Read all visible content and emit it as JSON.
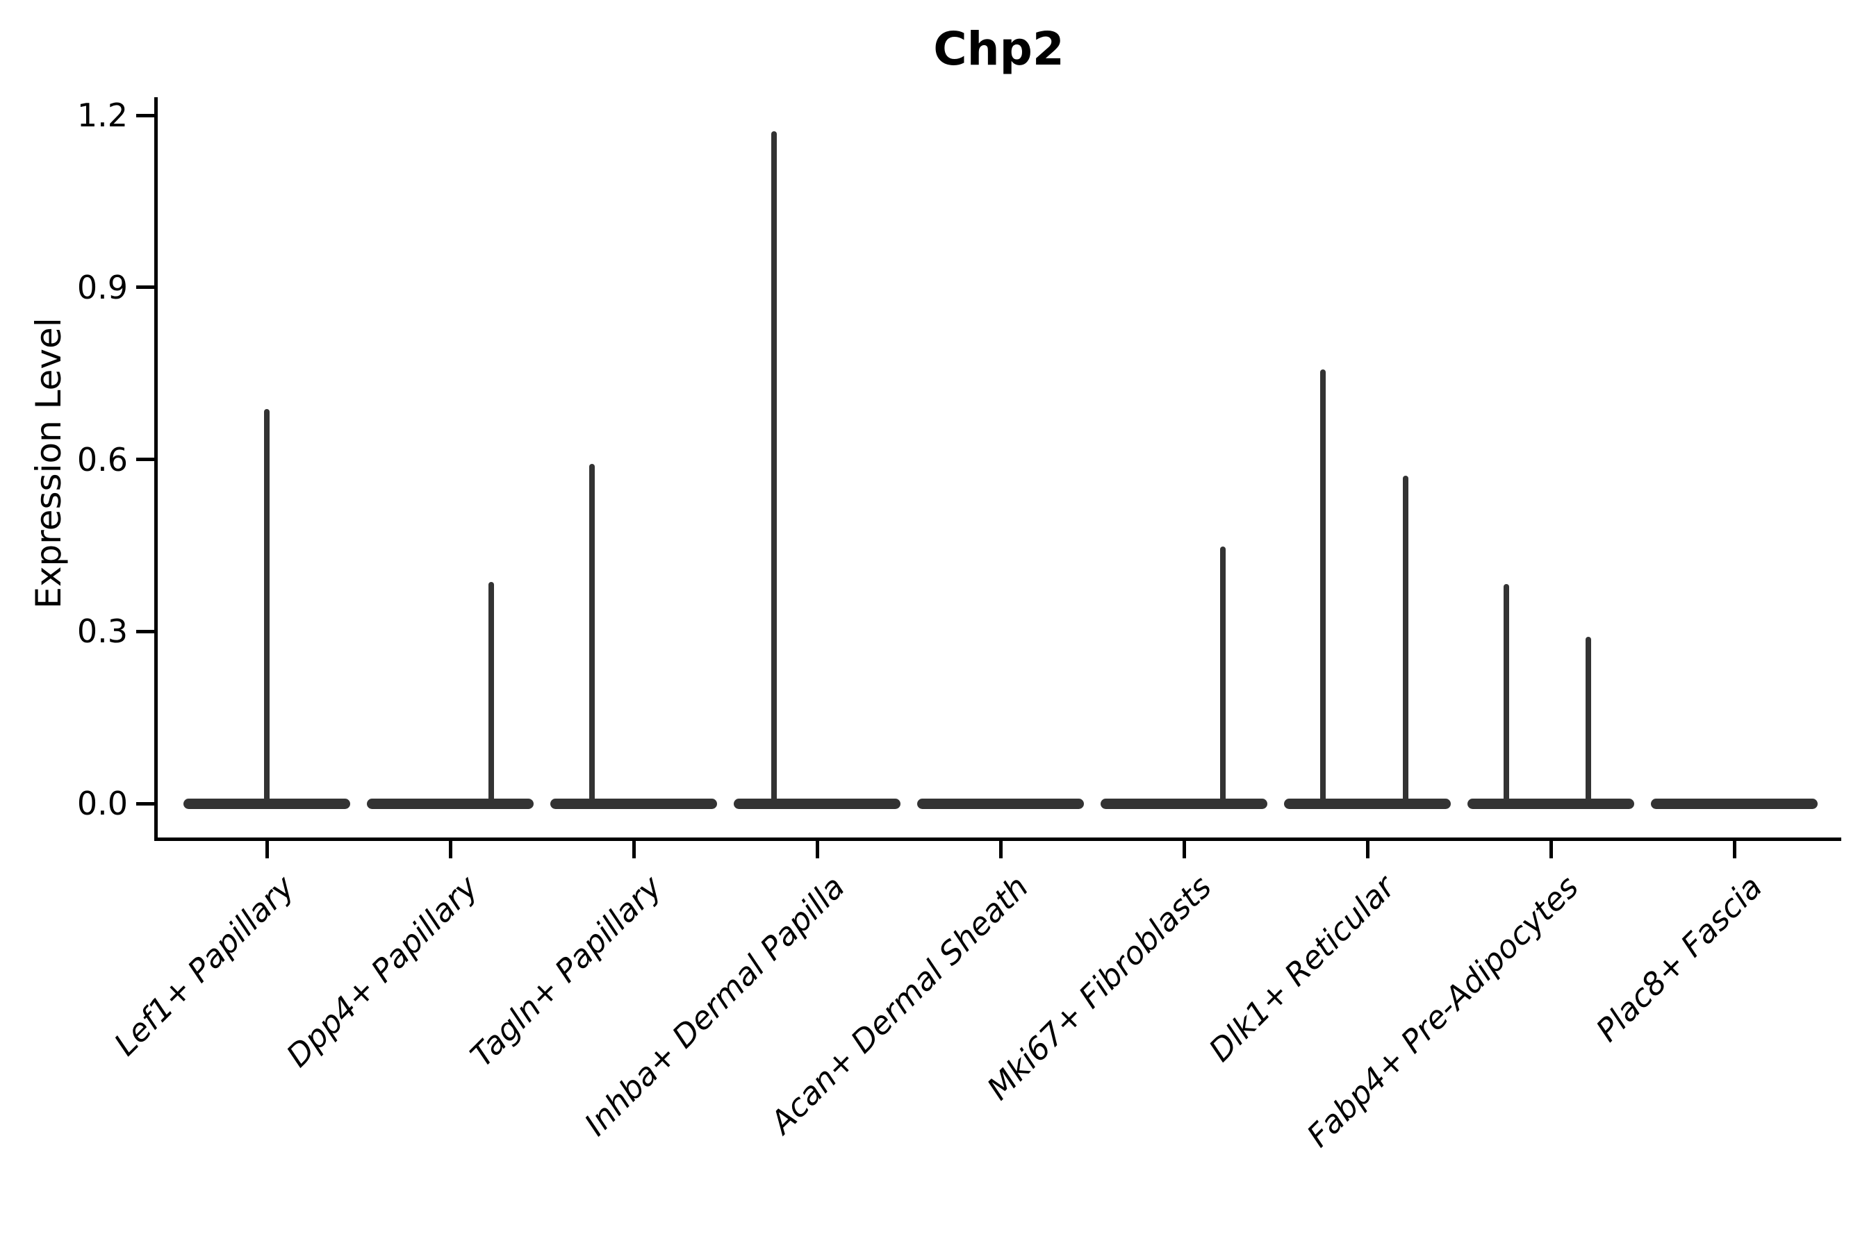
{
  "chart_data": {
    "type": "violin",
    "title": "Chp2",
    "xlabel": "",
    "ylabel": "Expression Level",
    "ytick_labels": [
      "0.0",
      "0.3",
      "0.6",
      "0.9",
      "1.2"
    ],
    "yticks": [
      0.0,
      0.3,
      0.6,
      0.9,
      1.2
    ],
    "ylim": [
      -0.06,
      1.23
    ],
    "grid": false,
    "legend": "none",
    "style_note": "zero-inflated expression violins: wide flat body at 0 with thin vertical density spikes",
    "violin_color": "#333333",
    "axis_color": "#000000",
    "categories": [
      "Lef1+ Papillary",
      "Dpp4+ Papillary",
      "Tagln+ Papillary",
      "Inhba+ Dermal Papilla",
      "Acan+ Dermal Sheath",
      "Mki67+ Fibroblasts",
      "Dlk1+ Reticular",
      "Fabp4+ Pre-Adipocytes",
      "Plac8+ Fascia"
    ],
    "violins": [
      {
        "category": "Lef1+ Papillary",
        "baseline_mass_at_zero": true,
        "spikes": [
          {
            "x_offset": 0.0,
            "max_value": 0.688
          }
        ]
      },
      {
        "category": "Dpp4+ Papillary",
        "baseline_mass_at_zero": true,
        "spikes": [
          {
            "x_offset": 0.224,
            "max_value": 0.386
          }
        ]
      },
      {
        "category": "Tagln+ Papillary",
        "baseline_mass_at_zero": true,
        "spikes": [
          {
            "x_offset": -0.227,
            "max_value": 0.592
          }
        ]
      },
      {
        "category": "Inhba+ Dermal Papilla",
        "baseline_mass_at_zero": true,
        "spikes": [
          {
            "x_offset": -0.235,
            "max_value": 1.172
          }
        ]
      },
      {
        "category": "Acan+ Dermal Sheath",
        "baseline_mass_at_zero": true,
        "spikes": []
      },
      {
        "category": "Mki67+ Fibroblasts",
        "baseline_mass_at_zero": true,
        "spikes": [
          {
            "x_offset": 0.212,
            "max_value": 0.448
          }
        ]
      },
      {
        "category": "Dlk1+ Reticular",
        "baseline_mass_at_zero": true,
        "spikes": [
          {
            "x_offset": -0.242,
            "max_value": 0.757
          },
          {
            "x_offset": 0.208,
            "max_value": 0.572
          }
        ]
      },
      {
        "category": "Fabp4+ Pre-Adipocytes",
        "baseline_mass_at_zero": true,
        "spikes": [
          {
            "x_offset": -0.242,
            "max_value": 0.383
          },
          {
            "x_offset": 0.205,
            "max_value": 0.291
          }
        ]
      },
      {
        "category": "Plac8+ Fascia",
        "baseline_mass_at_zero": true,
        "spikes": []
      }
    ]
  }
}
